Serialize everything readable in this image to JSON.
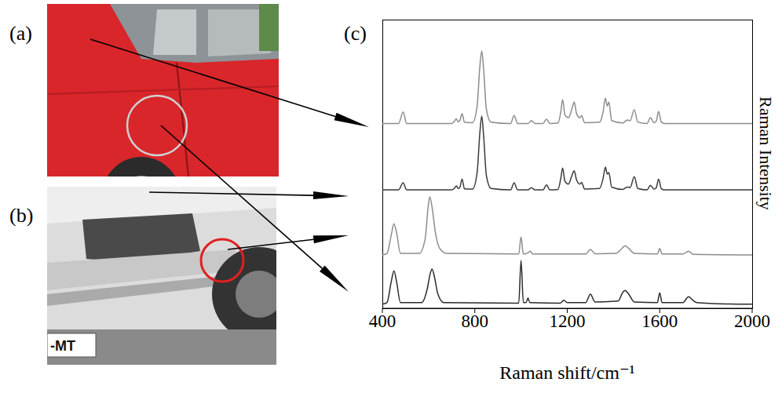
{
  "panels": [
    {
      "label": "(a)"
    },
    {
      "label": "(b)",
      "plate": "-MT"
    }
  ],
  "chart_data": {
    "label": "(c)",
    "type": "line",
    "x_label": "Raman shift/cm⁻¹",
    "y_label": "Raman Intensity",
    "xlim": [
      400,
      2000
    ],
    "xticks": [
      400,
      800,
      1200,
      1600,
      2000
    ],
    "ylim": [
      0,
      100
    ],
    "tick_labels": "x",
    "grid": false,
    "series": [
      {
        "color": "#8c8c8c",
        "x": [
          400,
          470,
          490,
          505,
          700,
          712,
          720,
          728,
          735,
          745,
          755,
          790,
          810,
          822,
          830,
          838,
          850,
          870,
          955,
          970,
          985,
          1030,
          1045,
          1060,
          1095,
          1110,
          1125,
          1160,
          1172,
          1180,
          1190,
          1205,
          1220,
          1230,
          1240,
          1255,
          1262,
          1275,
          1340,
          1355,
          1365,
          1373,
          1380,
          1392,
          1440,
          1460,
          1472,
          1490,
          1505,
          1545,
          1560,
          1575,
          1585,
          1595,
          1607,
          1620,
          2000
        ],
        "values": [
          64,
          64,
          68,
          64,
          64,
          64.8,
          65.6,
          64.6,
          65,
          67.4,
          64.5,
          64.3,
          70,
          84,
          89.1,
          83,
          69,
          64.5,
          64,
          66.8,
          64,
          64,
          65,
          64,
          64,
          65.5,
          64,
          64.2,
          68,
          72.3,
          67,
          66,
          69,
          71.5,
          67.5,
          66,
          66.8,
          64.3,
          64.5,
          68,
          72.8,
          70,
          71.5,
          65,
          64.2,
          65.2,
          65,
          68.8,
          64.5,
          64,
          66,
          64.3,
          64.8,
          68.2,
          64.5,
          64,
          64
        ]
      },
      {
        "color": "#3a3a3a",
        "x": [
          400,
          470,
          490,
          505,
          700,
          712,
          720,
          728,
          735,
          745,
          755,
          790,
          810,
          822,
          830,
          838,
          850,
          870,
          955,
          970,
          985,
          1030,
          1045,
          1060,
          1095,
          1110,
          1125,
          1160,
          1172,
          1180,
          1190,
          1205,
          1220,
          1230,
          1240,
          1255,
          1262,
          1275,
          1340,
          1355,
          1365,
          1373,
          1380,
          1392,
          1440,
          1460,
          1472,
          1490,
          1505,
          1545,
          1560,
          1575,
          1585,
          1595,
          1607,
          1620,
          2000
        ],
        "values": [
          41,
          41,
          43.5,
          41,
          41,
          41.6,
          42.4,
          41.5,
          41.8,
          44.8,
          41.4,
          41.3,
          47,
          61,
          66.6,
          60,
          46,
          41.5,
          41,
          43.5,
          41,
          41,
          41.8,
          41,
          41,
          42.7,
          41,
          41.2,
          45,
          48.6,
          44,
          43,
          46,
          47.6,
          44.5,
          43,
          43.6,
          41.3,
          41.5,
          45,
          48.9,
          46.5,
          47,
          42,
          41.2,
          42,
          41.8,
          45.6,
          41.5,
          41,
          42.6,
          41.3,
          41.7,
          44.8,
          41.4,
          41,
          41
        ]
      },
      {
        "color": "#8c8c8c",
        "x": [
          400,
          420,
          440,
          450,
          462,
          478,
          560,
          585,
          598,
          605,
          615,
          630,
          650,
          680,
          990,
          1000,
          1010,
          1030,
          1040,
          1050,
          1280,
          1300,
          1320,
          1410,
          1440,
          1450,
          1465,
          1490,
          1590,
          1600,
          1610,
          1700,
          1725,
          1745,
          2000
        ],
        "values": [
          18.5,
          19,
          26,
          29.3,
          26,
          19,
          19,
          24,
          35,
          38.6,
          35,
          26,
          20.5,
          19,
          18.8,
          24.7,
          18.8,
          19.2,
          19.8,
          18.8,
          18.8,
          20.4,
          18.9,
          19,
          21,
          21.7,
          20.8,
          19,
          18.8,
          20.7,
          18.8,
          18.8,
          19.8,
          18.7,
          18.5
        ]
      },
      {
        "color": "#2a2a2a",
        "x": [
          400,
          420,
          438,
          450,
          462,
          478,
          570,
          595,
          607,
          615,
          625,
          640,
          665,
          990,
          1000,
          1010,
          1022,
          1030,
          1038,
          1170,
          1185,
          1200,
          1280,
          1300,
          1320,
          1420,
          1440,
          1450,
          1465,
          1490,
          1590,
          1600,
          1610,
          1700,
          1725,
          1740,
          1760,
          1900,
          2000
        ],
        "values": [
          1.4,
          2,
          9,
          13,
          9,
          2,
          2,
          7,
          12,
          13.6,
          11,
          5,
          2,
          1.8,
          16.6,
          2,
          2,
          3.5,
          2,
          1.8,
          2.8,
          2,
          2,
          4.9,
          2.2,
          2.5,
          5.5,
          6.2,
          5,
          2.2,
          2,
          5.4,
          2,
          2,
          4,
          3,
          2,
          1.5,
          1.4
        ]
      }
    ]
  }
}
